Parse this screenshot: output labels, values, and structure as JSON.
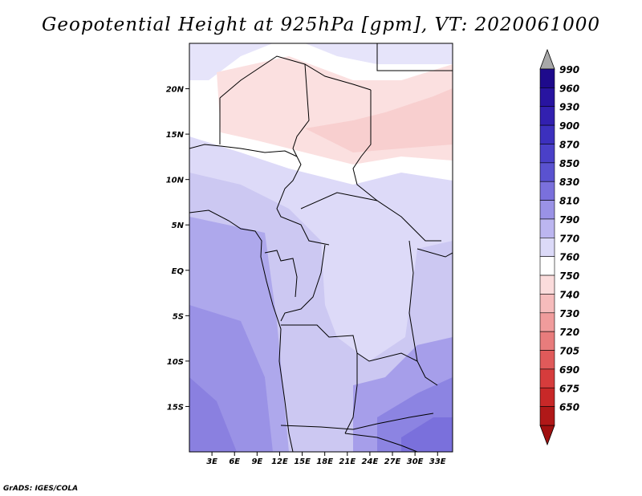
{
  "title": "Geopotential Height at 925hPa [gpm], VT: 2020061000",
  "credit": "GrADS: IGES/COLA",
  "map": {
    "lon_range": [
      0,
      35
    ],
    "lat_range": [
      -20,
      25
    ],
    "x_ticks": [
      {
        "lon": 3,
        "label": "3E"
      },
      {
        "lon": 6,
        "label": "6E"
      },
      {
        "lon": 9,
        "label": "9E"
      },
      {
        "lon": 12,
        "label": "12E"
      },
      {
        "lon": 15,
        "label": "15E"
      },
      {
        "lon": 18,
        "label": "18E"
      },
      {
        "lon": 21,
        "label": "21E"
      },
      {
        "lon": 24,
        "label": "24E"
      },
      {
        "lon": 27,
        "label": "27E"
      },
      {
        "lon": 30,
        "label": "30E"
      },
      {
        "lon": 33,
        "label": "33E"
      }
    ],
    "y_ticks": [
      {
        "lat": 20,
        "label": "20N"
      },
      {
        "lat": 15,
        "label": "15N"
      },
      {
        "lat": 10,
        "label": "10N"
      },
      {
        "lat": 5,
        "label": "5N"
      },
      {
        "lat": 0,
        "label": "EQ"
      },
      {
        "lat": -5,
        "label": "5S"
      },
      {
        "lat": -10,
        "label": "10S"
      },
      {
        "lat": -15,
        "label": "15S"
      }
    ]
  },
  "colorbar": {
    "levels": [
      {
        "label": "990",
        "color": "#1e0a8c"
      },
      {
        "label": "960",
        "color": "#2814a0"
      },
      {
        "label": "930",
        "color": "#3220b0"
      },
      {
        "label": "900",
        "color": "#3c30be"
      },
      {
        "label": "870",
        "color": "#4a40c8"
      },
      {
        "label": "850",
        "color": "#5a52d0"
      },
      {
        "label": "830",
        "color": "#7a70dc"
      },
      {
        "label": "810",
        "color": "#9a92e6"
      },
      {
        "label": "790",
        "color": "#bcb6f0"
      },
      {
        "label": "770",
        "color": "#dcdaf8"
      },
      {
        "label": "760",
        "color": "#ffffff"
      },
      {
        "label": "750",
        "color": "#fbdcdc"
      },
      {
        "label": "740",
        "color": "#f6bcbc"
      },
      {
        "label": "730",
        "color": "#f09c9c"
      },
      {
        "label": "720",
        "color": "#e87c7c"
      },
      {
        "label": "705",
        "color": "#e05a5a"
      },
      {
        "label": "690",
        "color": "#d63c3c"
      },
      {
        "label": "675",
        "color": "#c82828"
      },
      {
        "label": "650",
        "color": "#b01818"
      }
    ],
    "top_arrow_color": "#a8a8a8",
    "bottom_arrow_color": "#a01010"
  }
}
